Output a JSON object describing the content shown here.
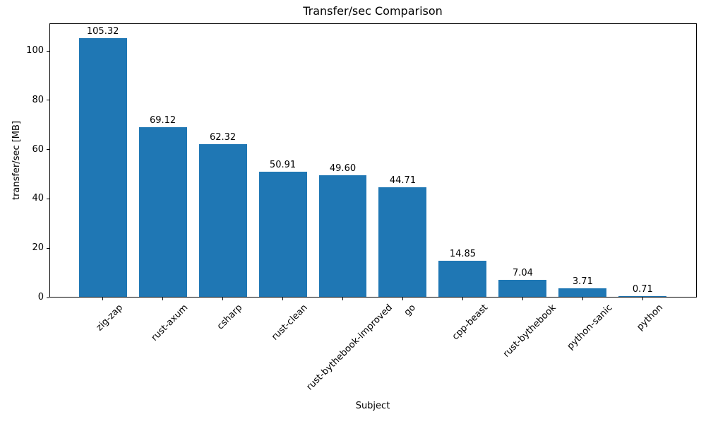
{
  "chart_data": {
    "type": "bar",
    "title": "Transfer/sec Comparison",
    "xlabel": "Subject",
    "ylabel": "transfer/sec [MB]",
    "categories": [
      "zig-zap",
      "rust-axum",
      "csharp",
      "rust-clean",
      "rust-bythebook-improved",
      "go",
      "cpp-beast",
      "rust-bythebook",
      "python-sanic",
      "python"
    ],
    "values": [
      105.32,
      69.12,
      62.32,
      50.91,
      49.6,
      44.71,
      14.85,
      7.04,
      3.71,
      0.71
    ],
    "value_labels": [
      "105.32",
      "69.12",
      "62.32",
      "50.91",
      "49.60",
      "44.71",
      "14.85",
      "7.04",
      "3.71",
      "0.71"
    ],
    "bar_color": "#1f77b4",
    "text_color": "#000000",
    "ylim": [
      0,
      111.2
    ],
    "yticks": [
      0,
      20,
      40,
      60,
      80,
      100
    ],
    "grid": false,
    "legend": null,
    "x_tick_rotation_deg": 45
  }
}
